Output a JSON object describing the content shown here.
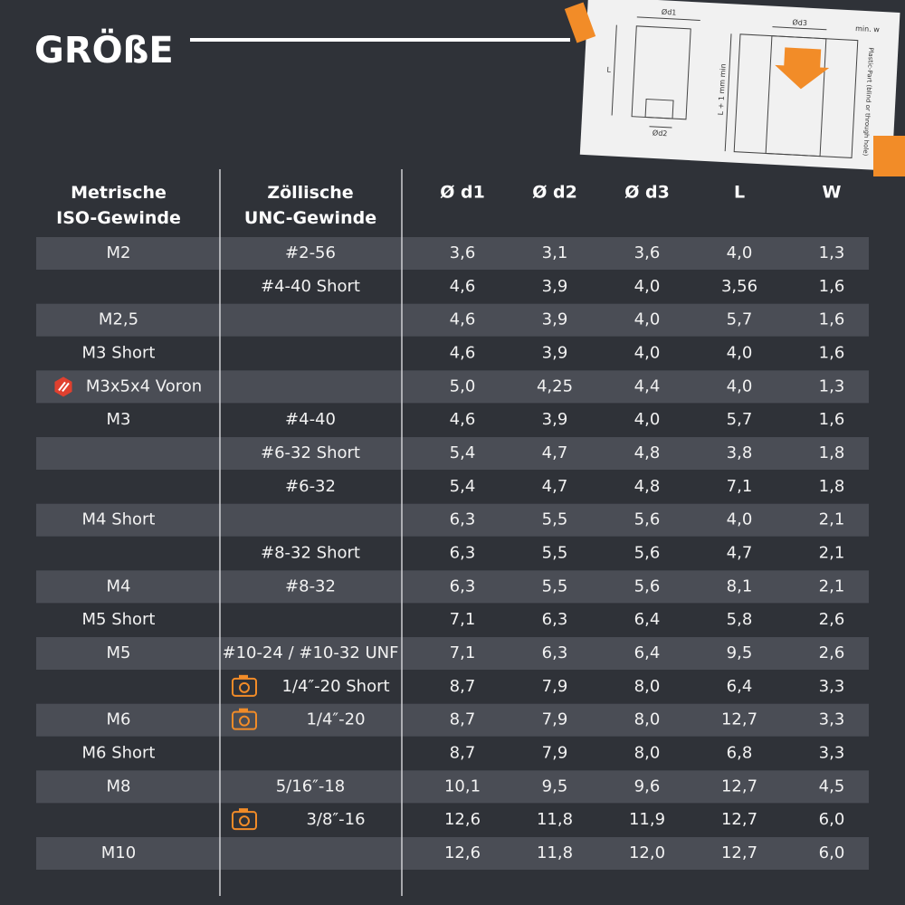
{
  "header": {
    "title": "GRÖßE"
  },
  "diagram": {
    "labels": [
      "Ød1",
      "Ød2",
      "L",
      "Ød3",
      "min. w",
      "L + 1 mm min",
      "Plastic-Part (blind or through hole)"
    ]
  },
  "table": {
    "columns": [
      "Metrische\nISO-Gewinde",
      "Zöllische\nUNC-Gewinde",
      "Ø d1",
      "Ø d2",
      "Ø d3",
      "L",
      "W"
    ],
    "rows": [
      {
        "metric": "M2",
        "unc": "#2-56",
        "values": [
          "3,6",
          "3,1",
          "3,6",
          "4,0",
          "1,3"
        ]
      },
      {
        "unc": "#4-40 Short",
        "values": [
          "4,6",
          "3,9",
          "4,0",
          "3,56",
          "1,6"
        ]
      },
      {
        "metric": "M2,5",
        "values": [
          "4,6",
          "3,9",
          "4,0",
          "5,7",
          "1,6"
        ]
      },
      {
        "metric": "M3 Short",
        "values": [
          "4,6",
          "3,9",
          "4,0",
          "4,0",
          "1,6"
        ]
      },
      {
        "metric": "M3x5x4 Voron",
        "icon": "voron",
        "values": [
          "5,0",
          "4,25",
          "4,4",
          "4,0",
          "1,3"
        ]
      },
      {
        "metric": "M3",
        "unc": "#4-40",
        "values": [
          "4,6",
          "3,9",
          "4,0",
          "5,7",
          "1,6"
        ]
      },
      {
        "unc": "#6-32 Short",
        "values": [
          "5,4",
          "4,7",
          "4,8",
          "3,8",
          "1,8"
        ]
      },
      {
        "unc": "#6-32",
        "values": [
          "5,4",
          "4,7",
          "4,8",
          "7,1",
          "1,8"
        ]
      },
      {
        "metric": "M4 Short",
        "values": [
          "6,3",
          "5,5",
          "5,6",
          "4,0",
          "2,1"
        ]
      },
      {
        "unc": "#8-32 Short",
        "values": [
          "6,3",
          "5,5",
          "5,6",
          "4,7",
          "2,1"
        ]
      },
      {
        "metric": "M4",
        "unc": "#8-32",
        "values": [
          "6,3",
          "5,5",
          "5,6",
          "8,1",
          "2,1"
        ]
      },
      {
        "metric": "M5 Short",
        "values": [
          "7,1",
          "6,3",
          "6,4",
          "5,8",
          "2,6"
        ]
      },
      {
        "metric": "M5",
        "unc": "#10-24 / #10-32 UNF",
        "values": [
          "7,1",
          "6,3",
          "6,4",
          "9,5",
          "2,6"
        ]
      },
      {
        "unc": "1/4″-20 Short",
        "icon": "camera",
        "values": [
          "8,7",
          "7,9",
          "8,0",
          "6,4",
          "3,3"
        ]
      },
      {
        "metric": "M6",
        "unc": "1/4″-20",
        "icon": "camera",
        "values": [
          "8,7",
          "7,9",
          "8,0",
          "12,7",
          "3,3"
        ]
      },
      {
        "metric": "M6 Short",
        "values": [
          "8,7",
          "7,9",
          "8,0",
          "6,8",
          "3,3"
        ]
      },
      {
        "metric": "M8",
        "unc": "5/16″-18",
        "values": [
          "10,1",
          "9,5",
          "9,6",
          "12,7",
          "4,5"
        ]
      },
      {
        "unc": "3/8″-16",
        "icon": "camera",
        "values": [
          "12,6",
          "11,8",
          "11,9",
          "12,7",
          "6,0"
        ]
      },
      {
        "metric": "M10",
        "values": [
          "12,6",
          "11,8",
          "12,0",
          "12,7",
          "6,0"
        ]
      }
    ]
  }
}
